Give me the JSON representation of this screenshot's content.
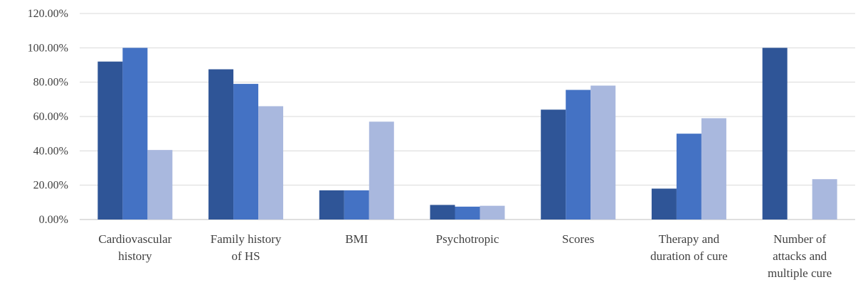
{
  "chart_data": {
    "type": "bar",
    "categories": [
      [
        "Cardiovascular",
        "history"
      ],
      [
        "Family history",
        "of HS"
      ],
      [
        "BMI"
      ],
      [
        "Psychotropic"
      ],
      [
        "Scores"
      ],
      [
        "Therapy and",
        "duration of cure"
      ],
      [
        "Number of",
        "attacks and",
        "multiple cure"
      ]
    ],
    "series": [
      {
        "color": "#2f5597",
        "values": [
          92,
          87.5,
          17,
          8.5,
          64,
          18,
          100
        ]
      },
      {
        "color": "#4472c4",
        "values": [
          100,
          79,
          17,
          7.5,
          75.5,
          50,
          0
        ]
      },
      {
        "color": "#a9b8de",
        "values": [
          40.5,
          66,
          57,
          8,
          78,
          59,
          23.5
        ]
      }
    ],
    "yticks": [
      "0.00%",
      "20.00%",
      "40.00%",
      "60.00%",
      "80.00%",
      "100.00%",
      "120.00%"
    ],
    "ylim": [
      0,
      120
    ],
    "grid": true,
    "legend": "none"
  }
}
